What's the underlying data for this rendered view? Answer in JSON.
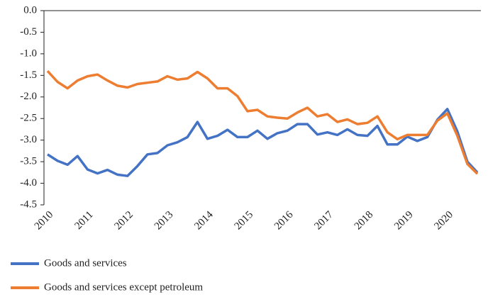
{
  "chart_data": {
    "type": "line",
    "categories": [
      "2010",
      null,
      null,
      null,
      "2011",
      null,
      null,
      null,
      "2012",
      null,
      null,
      null,
      "2013",
      null,
      null,
      null,
      "2014",
      null,
      null,
      null,
      "2015",
      null,
      null,
      null,
      "2016",
      null,
      null,
      null,
      "2017",
      null,
      null,
      null,
      "2018",
      null,
      null,
      null,
      "2019",
      null,
      null,
      null,
      "2020",
      null,
      null,
      null
    ],
    "series": [
      {
        "name": "Goods and services",
        "color": "#4472c4",
        "values": [
          -3.33,
          -3.48,
          -3.57,
          -3.37,
          -3.68,
          -3.77,
          -3.69,
          -3.8,
          -3.83,
          -3.6,
          -3.33,
          -3.3,
          -3.12,
          -3.05,
          -2.93,
          -2.58,
          -2.97,
          -2.9,
          -2.76,
          -2.93,
          -2.93,
          -2.78,
          -2.97,
          -2.84,
          -2.78,
          -2.63,
          -2.63,
          -2.87,
          -2.82,
          -2.88,
          -2.75,
          -2.88,
          -2.9,
          -2.67,
          -3.1,
          -3.1,
          -2.92,
          -3.02,
          -2.93,
          -2.53,
          -2.28,
          -2.8,
          -3.5,
          -3.75
        ]
      },
      {
        "name": "Goods and services except petroleum",
        "color": "#ed7d31",
        "values": [
          -1.4,
          -1.65,
          -1.8,
          -1.62,
          -1.52,
          -1.48,
          -1.62,
          -1.74,
          -1.78,
          -1.7,
          -1.67,
          -1.64,
          -1.52,
          -1.6,
          -1.57,
          -1.42,
          -1.57,
          -1.8,
          -1.8,
          -1.98,
          -2.33,
          -2.3,
          -2.45,
          -2.48,
          -2.5,
          -2.36,
          -2.25,
          -2.45,
          -2.4,
          -2.58,
          -2.52,
          -2.63,
          -2.6,
          -2.45,
          -2.82,
          -2.98,
          -2.88,
          -2.88,
          -2.88,
          -2.55,
          -2.38,
          -2.9,
          -3.55,
          -3.78
        ]
      }
    ],
    "ylim": [
      -4.5,
      0
    ],
    "yticks": [
      {
        "value": 0,
        "label": "0.0"
      },
      -0.5,
      {
        "value": -1,
        "label": "-1.0"
      },
      -1.5,
      {
        "value": -2,
        "label": "-2.0"
      },
      -2.5,
      {
        "value": -3,
        "label": "-3.0"
      },
      -3.5,
      {
        "value": -4,
        "label": "-4.0"
      },
      -4.5
    ],
    "grid": false
  }
}
